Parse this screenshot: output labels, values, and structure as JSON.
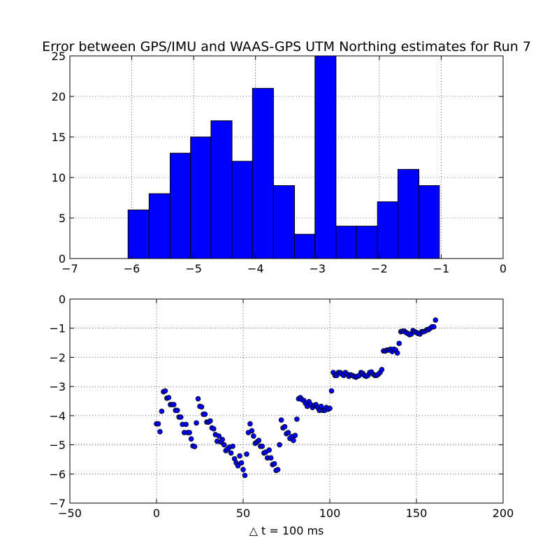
{
  "chart_data": [
    {
      "type": "bar",
      "title": "Error between GPS/IMU and WAAS-GPS UTM Northing estimates for Run 7",
      "xlabel": "",
      "ylabel": "",
      "xlim": [
        -7,
        0
      ],
      "ylim": [
        0,
        25
      ],
      "xticks": [
        -7,
        -6,
        -5,
        -4,
        -3,
        -2,
        -1,
        0
      ],
      "yticks": [
        0,
        5,
        10,
        15,
        20,
        25
      ],
      "grid": true,
      "bar_color": "#0000ff",
      "bins": [
        {
          "left": -6.06,
          "right": -5.72,
          "value": 6
        },
        {
          "left": -5.72,
          "right": -5.38,
          "value": 8
        },
        {
          "left": -5.38,
          "right": -5.05,
          "value": 13
        },
        {
          "left": -5.05,
          "right": -4.72,
          "value": 15
        },
        {
          "left": -4.72,
          "right": -4.38,
          "value": 17
        },
        {
          "left": -4.38,
          "right": -4.05,
          "value": 12
        },
        {
          "left": -4.05,
          "right": -3.71,
          "value": 21
        },
        {
          "left": -3.71,
          "right": -3.37,
          "value": 9
        },
        {
          "left": -3.37,
          "right": -3.04,
          "value": 3
        },
        {
          "left": -3.04,
          "right": -2.7,
          "value": 25
        },
        {
          "left": -2.7,
          "right": -2.37,
          "value": 4
        },
        {
          "left": -2.37,
          "right": -2.03,
          "value": 4
        },
        {
          "left": -2.03,
          "right": -1.7,
          "value": 7
        },
        {
          "left": -1.7,
          "right": -1.36,
          "value": 11
        },
        {
          "left": -1.36,
          "right": -1.03,
          "value": 9
        }
      ]
    },
    {
      "type": "scatter",
      "title": "",
      "xlabel": "△ t = 100 ms",
      "ylabel": "",
      "xlim": [
        -50,
        200
      ],
      "ylim": [
        -7,
        0
      ],
      "xticks": [
        -50,
        0,
        50,
        100,
        150,
        200
      ],
      "yticks": [
        0,
        -1,
        -2,
        -3,
        -4,
        -5,
        -6,
        -7
      ],
      "grid": true,
      "marker_color": "#0000ff",
      "points": [
        [
          0,
          -4.28
        ],
        [
          1,
          -4.28
        ],
        [
          2,
          -4.55
        ],
        [
          3,
          -3.85
        ],
        [
          4,
          -3.18
        ],
        [
          5,
          -3.15
        ],
        [
          6,
          -3.4
        ],
        [
          7,
          -3.38
        ],
        [
          8,
          -3.62
        ],
        [
          9,
          -3.62
        ],
        [
          10,
          -3.62
        ],
        [
          11,
          -3.82
        ],
        [
          12,
          -3.82
        ],
        [
          13,
          -4.05
        ],
        [
          14,
          -4.05
        ],
        [
          15,
          -4.3
        ],
        [
          16,
          -4.58
        ],
        [
          17,
          -4.3
        ],
        [
          18,
          -4.58
        ],
        [
          19,
          -4.58
        ],
        [
          20,
          -4.8
        ],
        [
          21,
          -5.04
        ],
        [
          22,
          -5.06
        ],
        [
          23,
          -4.25
        ],
        [
          24,
          -3.42
        ],
        [
          25,
          -3.68
        ],
        [
          26,
          -3.7
        ],
        [
          27,
          -3.95
        ],
        [
          28,
          -3.95
        ],
        [
          29,
          -4.22
        ],
        [
          30,
          -4.22
        ],
        [
          31,
          -4.18
        ],
        [
          32,
          -4.42
        ],
        [
          33,
          -4.45
        ],
        [
          34,
          -4.65
        ],
        [
          35,
          -4.88
        ],
        [
          36,
          -4.7
        ],
        [
          37,
          -4.9
        ],
        [
          38,
          -4.82
        ],
        [
          39,
          -5.0
        ],
        [
          40,
          -5.2
        ],
        [
          41,
          -5.15
        ],
        [
          42,
          -5.08
        ],
        [
          43,
          -5.28
        ],
        [
          44,
          -5.05
        ],
        [
          45,
          -5.48
        ],
        [
          46,
          -5.62
        ],
        [
          47,
          -5.72
        ],
        [
          48,
          -5.38
        ],
        [
          49,
          -5.62
        ],
        [
          50,
          -5.85
        ],
        [
          51,
          -6.05
        ],
        [
          52,
          -5.32
        ],
        [
          53,
          -4.58
        ],
        [
          54,
          -4.28
        ],
        [
          55,
          -4.52
        ],
        [
          56,
          -4.7
        ],
        [
          57,
          -4.95
        ],
        [
          58,
          -4.9
        ],
        [
          59,
          -4.85
        ],
        [
          60,
          -5.05
        ],
        [
          61,
          -5.05
        ],
        [
          62,
          -5.28
        ],
        [
          63,
          -5.25
        ],
        [
          64,
          -5.45
        ],
        [
          65,
          -5.18
        ],
        [
          66,
          -5.45
        ],
        [
          67,
          -5.68
        ],
        [
          68,
          -5.65
        ],
        [
          69,
          -5.88
        ],
        [
          70,
          -5.85
        ],
        [
          71,
          -5.0
        ],
        [
          72,
          -4.15
        ],
        [
          73,
          -4.42
        ],
        [
          74,
          -4.38
        ],
        [
          75,
          -4.62
        ],
        [
          76,
          -4.58
        ],
        [
          77,
          -4.78
        ],
        [
          78,
          -4.72
        ],
        [
          79,
          -4.85
        ],
        [
          80,
          -4.68
        ],
        [
          81,
          -4.12
        ],
        [
          82,
          -3.42
        ],
        [
          83,
          -3.38
        ],
        [
          84,
          -3.45
        ],
        [
          85,
          -3.48
        ],
        [
          86,
          -3.58
        ],
        [
          87,
          -3.68
        ],
        [
          88,
          -3.52
        ],
        [
          89,
          -3.62
        ],
        [
          90,
          -3.72
        ],
        [
          91,
          -3.65
        ],
        [
          92,
          -3.62
        ],
        [
          93,
          -3.72
        ],
        [
          94,
          -3.82
        ],
        [
          95,
          -3.68
        ],
        [
          96,
          -3.82
        ],
        [
          97,
          -3.82
        ],
        [
          98,
          -3.72
        ],
        [
          99,
          -3.78
        ],
        [
          100,
          -3.75
        ],
        [
          101,
          -3.15
        ],
        [
          102,
          -2.52
        ],
        [
          103,
          -2.62
        ],
        [
          104,
          -2.62
        ],
        [
          105,
          -2.52
        ],
        [
          106,
          -2.52
        ],
        [
          107,
          -2.58
        ],
        [
          108,
          -2.62
        ],
        [
          109,
          -2.52
        ],
        [
          110,
          -2.58
        ],
        [
          111,
          -2.65
        ],
        [
          112,
          -2.6
        ],
        [
          113,
          -2.62
        ],
        [
          114,
          -2.65
        ],
        [
          115,
          -2.68
        ],
        [
          116,
          -2.65
        ],
        [
          117,
          -2.62
        ],
        [
          118,
          -2.52
        ],
        [
          119,
          -2.55
        ],
        [
          120,
          -2.62
        ],
        [
          121,
          -2.65
        ],
        [
          122,
          -2.62
        ],
        [
          123,
          -2.52
        ],
        [
          124,
          -2.5
        ],
        [
          125,
          -2.58
        ],
        [
          126,
          -2.62
        ],
        [
          127,
          -2.62
        ],
        [
          128,
          -2.58
        ],
        [
          129,
          -2.52
        ],
        [
          130,
          -2.42
        ],
        [
          131,
          -1.78
        ],
        [
          132,
          -1.78
        ],
        [
          133,
          -1.75
        ],
        [
          134,
          -1.75
        ],
        [
          135,
          -1.72
        ],
        [
          136,
          -1.8
        ],
        [
          137,
          -1.72
        ],
        [
          138,
          -1.75
        ],
        [
          139,
          -1.85
        ],
        [
          140,
          -1.52
        ],
        [
          141,
          -1.12
        ],
        [
          142,
          -1.1
        ],
        [
          143,
          -1.1
        ],
        [
          144,
          -1.15
        ],
        [
          145,
          -1.18
        ],
        [
          146,
          -1.22
        ],
        [
          147,
          -1.2
        ],
        [
          148,
          -1.08
        ],
        [
          149,
          -1.12
        ],
        [
          150,
          -1.15
        ],
        [
          151,
          -1.18
        ],
        [
          152,
          -1.2
        ],
        [
          153,
          -1.12
        ],
        [
          154,
          -1.12
        ],
        [
          155,
          -1.1
        ],
        [
          156,
          -1.05
        ],
        [
          157,
          -1.05
        ],
        [
          158,
          -1.0
        ],
        [
          159,
          -0.95
        ],
        [
          160,
          -0.95
        ],
        [
          161,
          -0.72
        ]
      ]
    }
  ]
}
